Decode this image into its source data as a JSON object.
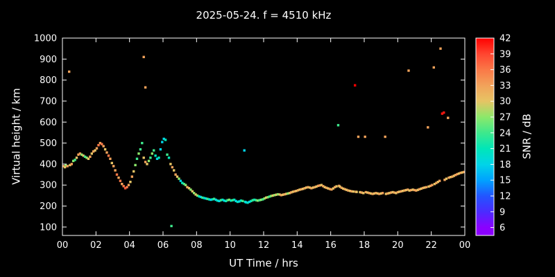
{
  "title": "2025-05-24. f = 4510 kHz",
  "chart_data": {
    "type": "scatter",
    "title": "2025-05-24. f = 4510 kHz",
    "xlabel": "UT Time / hrs",
    "ylabel": "Virtual height / km",
    "x_range": [
      0,
      24
    ],
    "y_range_labeled": [
      100,
      1000
    ],
    "y_range_render": [
      60,
      1000
    ],
    "x_tick_values": [
      0,
      2,
      4,
      6,
      8,
      10,
      12,
      14,
      16,
      18,
      20,
      22,
      24
    ],
    "x_tick_labels": [
      "00",
      "02",
      "04",
      "06",
      "08",
      "10",
      "12",
      "14",
      "16",
      "18",
      "20",
      "22",
      "00"
    ],
    "y_tick_values": [
      100,
      200,
      300,
      400,
      500,
      600,
      700,
      800,
      900,
      1000
    ],
    "grid": false,
    "background": "#000000",
    "foreground": "#ffffff",
    "colorbar": {
      "label": "SNR / dB",
      "tick_values": [
        6,
        9,
        12,
        15,
        18,
        21,
        24,
        27,
        30,
        33,
        36,
        39,
        42
      ],
      "range_render": [
        4.5,
        42
      ],
      "stops": [
        {
          "v": 6,
          "c": "#8b00ff"
        },
        {
          "v": 9,
          "c": "#4b2bff"
        },
        {
          "v": 12,
          "c": "#2255ff"
        },
        {
          "v": 15,
          "c": "#00a2ff"
        },
        {
          "v": 18,
          "c": "#00d4e8"
        },
        {
          "v": 21,
          "c": "#00e6b8"
        },
        {
          "v": 24,
          "c": "#3ee88c"
        },
        {
          "v": 27,
          "c": "#8ce86a"
        },
        {
          "v": 30,
          "c": "#e6c464"
        },
        {
          "v": 33,
          "c": "#f2a25a"
        },
        {
          "v": 36,
          "c": "#fa7847"
        },
        {
          "v": 39,
          "c": "#ff4530"
        },
        {
          "v": 42,
          "c": "#ff0000"
        }
      ]
    },
    "points_format": [
      "ut_hours",
      "virtual_height_km",
      "snr_db"
    ],
    "points": [
      [
        0.05,
        390,
        33
      ],
      [
        0.15,
        385,
        30
      ],
      [
        0.2,
        395,
        27
      ],
      [
        0.3,
        390,
        33
      ],
      [
        0.4,
        840,
        33
      ],
      [
        0.45,
        395,
        30
      ],
      [
        0.55,
        400,
        33
      ],
      [
        0.65,
        415,
        27
      ],
      [
        0.75,
        420,
        24
      ],
      [
        0.85,
        430,
        30
      ],
      [
        0.95,
        445,
        33
      ],
      [
        1.05,
        450,
        33
      ],
      [
        1.15,
        445,
        27
      ],
      [
        1.25,
        440,
        30
      ],
      [
        1.35,
        435,
        24
      ],
      [
        1.45,
        430,
        27
      ],
      [
        1.55,
        425,
        30
      ],
      [
        1.65,
        435,
        33
      ],
      [
        1.75,
        450,
        30
      ],
      [
        1.85,
        460,
        33
      ],
      [
        1.95,
        465,
        30
      ],
      [
        2.05,
        475,
        33
      ],
      [
        2.15,
        490,
        36
      ],
      [
        2.25,
        500,
        33
      ],
      [
        2.35,
        495,
        36
      ],
      [
        2.45,
        485,
        33
      ],
      [
        2.55,
        470,
        30
      ],
      [
        2.65,
        455,
        33
      ],
      [
        2.75,
        440,
        36
      ],
      [
        2.85,
        425,
        33
      ],
      [
        2.95,
        405,
        30
      ],
      [
        3.05,
        390,
        33
      ],
      [
        3.15,
        370,
        33
      ],
      [
        3.25,
        350,
        36
      ],
      [
        3.35,
        335,
        33
      ],
      [
        3.45,
        320,
        36
      ],
      [
        3.55,
        305,
        33
      ],
      [
        3.65,
        295,
        36
      ],
      [
        3.75,
        285,
        38
      ],
      [
        3.85,
        290,
        36
      ],
      [
        3.95,
        300,
        33
      ],
      [
        4.05,
        315,
        30
      ],
      [
        4.15,
        340,
        33
      ],
      [
        4.25,
        365,
        30
      ],
      [
        4.35,
        395,
        27
      ],
      [
        4.45,
        425,
        24
      ],
      [
        4.55,
        450,
        27
      ],
      [
        4.65,
        470,
        24
      ],
      [
        4.75,
        500,
        24
      ],
      [
        4.85,
        910,
        33
      ],
      [
        4.85,
        430,
        30
      ],
      [
        4.95,
        765,
        33
      ],
      [
        4.95,
        410,
        33
      ],
      [
        5.05,
        400,
        30
      ],
      [
        5.15,
        415,
        27
      ],
      [
        5.25,
        430,
        24
      ],
      [
        5.35,
        450,
        27
      ],
      [
        5.45,
        465,
        24
      ],
      [
        5.55,
        440,
        21
      ],
      [
        5.65,
        425,
        18
      ],
      [
        5.75,
        430,
        21
      ],
      [
        5.85,
        470,
        18
      ],
      [
        5.95,
        505,
        18
      ],
      [
        6.05,
        520,
        18
      ],
      [
        6.15,
        515,
        21
      ],
      [
        6.25,
        445,
        24
      ],
      [
        6.35,
        430,
        21
      ],
      [
        6.45,
        400,
        30
      ],
      [
        6.5,
        105,
        24
      ],
      [
        6.55,
        385,
        33
      ],
      [
        6.65,
        370,
        30
      ],
      [
        6.75,
        350,
        33
      ],
      [
        6.85,
        340,
        30
      ],
      [
        6.95,
        330,
        27
      ],
      [
        7.05,
        320,
        18
      ],
      [
        7.15,
        310,
        21
      ],
      [
        7.25,
        305,
        24
      ],
      [
        7.35,
        300,
        27
      ],
      [
        7.45,
        290,
        33
      ],
      [
        7.55,
        285,
        30
      ],
      [
        7.65,
        278,
        27
      ],
      [
        7.75,
        270,
        30
      ],
      [
        7.85,
        262,
        27
      ],
      [
        7.95,
        255,
        30
      ],
      [
        8.05,
        250,
        27
      ],
      [
        8.15,
        246,
        21
      ],
      [
        8.25,
        243,
        18
      ],
      [
        8.35,
        240,
        24
      ],
      [
        8.45,
        238,
        21
      ],
      [
        8.55,
        236,
        18
      ],
      [
        8.65,
        234,
        24
      ],
      [
        8.75,
        232,
        21
      ],
      [
        8.85,
        230,
        18
      ],
      [
        8.95,
        232,
        21
      ],
      [
        9.05,
        234,
        24
      ],
      [
        9.15,
        230,
        18
      ],
      [
        9.25,
        226,
        21
      ],
      [
        9.35,
        224,
        18
      ],
      [
        9.45,
        228,
        24
      ],
      [
        9.55,
        230,
        21
      ],
      [
        9.65,
        226,
        18
      ],
      [
        9.75,
        224,
        21
      ],
      [
        9.85,
        228,
        24
      ],
      [
        9.95,
        230,
        27
      ],
      [
        10.05,
        226,
        21
      ],
      [
        10.15,
        228,
        24
      ],
      [
        10.25,
        230,
        21
      ],
      [
        10.35,
        224,
        18
      ],
      [
        10.45,
        220,
        21
      ],
      [
        10.55,
        222,
        18
      ],
      [
        10.65,
        226,
        21
      ],
      [
        10.75,
        224,
        24
      ],
      [
        10.85,
        465,
        18
      ],
      [
        10.9,
        220,
        21
      ],
      [
        10.95,
        218,
        18
      ],
      [
        11.05,
        216,
        21
      ],
      [
        11.15,
        220,
        18
      ],
      [
        11.25,
        224,
        21
      ],
      [
        11.35,
        228,
        24
      ],
      [
        11.45,
        230,
        21
      ],
      [
        11.55,
        228,
        24
      ],
      [
        11.65,
        226,
        27
      ],
      [
        11.75,
        228,
        24
      ],
      [
        11.85,
        230,
        27
      ],
      [
        11.95,
        232,
        24
      ],
      [
        12.05,
        236,
        27
      ],
      [
        12.15,
        240,
        30
      ],
      [
        12.25,
        242,
        27
      ],
      [
        12.35,
        245,
        24
      ],
      [
        12.45,
        248,
        27
      ],
      [
        12.55,
        250,
        30
      ],
      [
        12.65,
        252,
        27
      ],
      [
        12.75,
        254,
        30
      ],
      [
        12.85,
        256,
        27
      ],
      [
        12.95,
        255,
        30
      ],
      [
        13.05,
        252,
        33
      ],
      [
        13.15,
        254,
        30
      ],
      [
        13.25,
        256,
        33
      ],
      [
        13.35,
        258,
        30
      ],
      [
        13.45,
        260,
        27
      ],
      [
        13.55,
        262,
        30
      ],
      [
        13.65,
        265,
        33
      ],
      [
        13.75,
        268,
        30
      ],
      [
        13.85,
        270,
        33
      ],
      [
        13.95,
        272,
        30
      ],
      [
        14.05,
        275,
        33
      ],
      [
        14.15,
        278,
        30
      ],
      [
        14.25,
        280,
        33
      ],
      [
        14.35,
        282,
        30
      ],
      [
        14.45,
        285,
        33
      ],
      [
        14.55,
        288,
        30
      ],
      [
        14.65,
        290,
        33
      ],
      [
        14.75,
        288,
        30
      ],
      [
        14.85,
        285,
        33
      ],
      [
        14.95,
        288,
        30
      ],
      [
        15.05,
        290,
        33
      ],
      [
        15.15,
        293,
        30
      ],
      [
        15.25,
        296,
        33
      ],
      [
        15.35,
        298,
        33
      ],
      [
        15.45,
        300,
        30
      ],
      [
        15.55,
        295,
        33
      ],
      [
        15.65,
        290,
        30
      ],
      [
        15.75,
        287,
        33
      ],
      [
        15.85,
        284,
        30
      ],
      [
        15.95,
        281,
        33
      ],
      [
        16.05,
        279,
        33
      ],
      [
        16.15,
        284,
        30
      ],
      [
        16.25,
        290,
        33
      ],
      [
        16.35,
        294,
        30
      ],
      [
        16.45,
        585,
        24
      ],
      [
        16.5,
        296,
        33
      ],
      [
        16.55,
        292,
        30
      ],
      [
        16.65,
        287,
        33
      ],
      [
        16.75,
        283,
        30
      ],
      [
        16.85,
        280,
        33
      ],
      [
        16.95,
        277,
        30
      ],
      [
        17.05,
        274,
        33
      ],
      [
        17.15,
        272,
        30
      ],
      [
        17.25,
        270,
        33
      ],
      [
        17.35,
        269,
        30
      ],
      [
        17.45,
        775,
        42
      ],
      [
        17.5,
        268,
        33
      ],
      [
        17.55,
        267,
        30
      ],
      [
        17.65,
        530,
        33
      ],
      [
        17.75,
        266,
        30
      ],
      [
        17.85,
        264,
        33
      ],
      [
        17.95,
        262,
        30
      ],
      [
        18.05,
        530,
        33
      ],
      [
        18.1,
        266,
        33
      ],
      [
        18.2,
        264,
        30
      ],
      [
        18.3,
        262,
        33
      ],
      [
        18.4,
        260,
        30
      ],
      [
        18.5,
        258,
        33
      ],
      [
        18.6,
        260,
        30
      ],
      [
        18.7,
        262,
        33
      ],
      [
        18.8,
        260,
        30
      ],
      [
        18.9,
        258,
        33
      ],
      [
        19.0,
        260,
        30
      ],
      [
        19.1,
        262,
        33
      ],
      [
        19.25,
        530,
        33
      ],
      [
        19.3,
        258,
        30
      ],
      [
        19.4,
        260,
        33
      ],
      [
        19.5,
        262,
        30
      ],
      [
        19.6,
        264,
        33
      ],
      [
        19.7,
        266,
        30
      ],
      [
        19.8,
        264,
        33
      ],
      [
        19.9,
        262,
        30
      ],
      [
        20.0,
        266,
        33
      ],
      [
        20.1,
        268,
        30
      ],
      [
        20.2,
        270,
        33
      ],
      [
        20.3,
        272,
        30
      ],
      [
        20.4,
        274,
        33
      ],
      [
        20.5,
        276,
        30
      ],
      [
        20.6,
        278,
        33
      ],
      [
        20.65,
        845,
        33
      ],
      [
        20.7,
        274,
        30
      ],
      [
        20.8,
        276,
        33
      ],
      [
        20.9,
        278,
        30
      ],
      [
        21.0,
        276,
        33
      ],
      [
        21.1,
        274,
        33
      ],
      [
        21.2,
        277,
        30
      ],
      [
        21.3,
        280,
        33
      ],
      [
        21.4,
        283,
        30
      ],
      [
        21.5,
        286,
        33
      ],
      [
        21.6,
        288,
        30
      ],
      [
        21.7,
        290,
        33
      ],
      [
        21.8,
        575,
        33
      ],
      [
        21.85,
        293,
        30
      ],
      [
        21.95,
        296,
        33
      ],
      [
        22.05,
        300,
        33
      ],
      [
        22.15,
        860,
        33
      ],
      [
        22.2,
        305,
        30
      ],
      [
        22.3,
        310,
        33
      ],
      [
        22.4,
        315,
        30
      ],
      [
        22.5,
        320,
        33
      ],
      [
        22.55,
        950,
        33
      ],
      [
        22.65,
        640,
        41
      ],
      [
        22.75,
        645,
        41
      ],
      [
        22.8,
        325,
        33
      ],
      [
        22.9,
        330,
        30
      ],
      [
        23.0,
        620,
        33
      ],
      [
        23.05,
        335,
        33
      ],
      [
        23.15,
        338,
        30
      ],
      [
        23.25,
        340,
        33
      ],
      [
        23.35,
        344,
        30
      ],
      [
        23.45,
        348,
        33
      ],
      [
        23.55,
        352,
        33
      ],
      [
        23.65,
        355,
        30
      ],
      [
        23.75,
        358,
        33
      ],
      [
        23.85,
        360,
        30
      ],
      [
        23.95,
        362,
        33
      ]
    ]
  }
}
